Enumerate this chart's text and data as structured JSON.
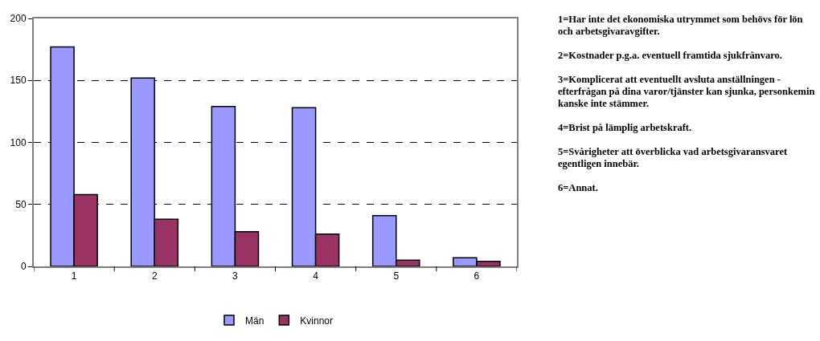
{
  "chart_data": {
    "type": "bar",
    "categories": [
      "1",
      "2",
      "3",
      "4",
      "5",
      "6"
    ],
    "series": [
      {
        "name": "Män",
        "color": "#9999ff",
        "values": [
          177,
          152,
          129,
          128,
          41,
          7
        ]
      },
      {
        "name": "Kvinnor",
        "color": "#993366",
        "values": [
          58,
          38,
          28,
          26,
          5,
          4
        ]
      }
    ],
    "ylim": [
      0,
      200
    ],
    "yticks": [
      0,
      50,
      100,
      150,
      200
    ],
    "grid": "y",
    "line_style": "dashed",
    "legend": "bottom",
    "annotations": [
      "1=Har inte det ekonomiska utrymmet som behövs för lön och arbetsgivaravgifter.",
      "2=Kostnader p.g.a. eventuell framtida sjukfrånvaro.",
      "3=Komplicerat att eventuellt avsluta anställningen - efterfrågan på dina varor/tjänster kan sjunka, personkemin kanske inte stämmer.",
      "4=Brist på lämplig arbetskraft.",
      "5=Svårigheter att överblicka vad arbetsgivaransvaret egentligen innebär.",
      "6=Annat."
    ]
  }
}
